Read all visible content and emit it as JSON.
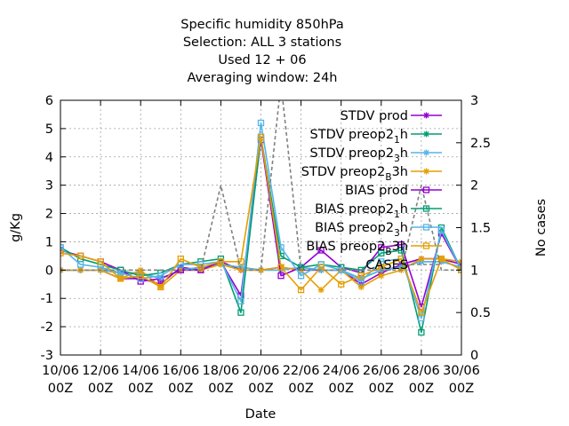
{
  "chart_data": {
    "type": "line",
    "title_lines": [
      "Specific humidity 850hPa",
      "Selection: ALL      3 stations",
      "Used  12 + 06",
      "Averaging window: 24h"
    ],
    "xlabel": "Date",
    "ylabel": "g/Kg",
    "y2label": "No cases",
    "ylim": [
      -3,
      6
    ],
    "y2lim": [
      0,
      3
    ],
    "yticks": [
      "-3",
      "-2",
      "-1",
      "0",
      "1",
      "2",
      "3",
      "4",
      "5",
      "6"
    ],
    "y2ticks": [
      "0",
      "0.5",
      "1",
      "1.5",
      "2",
      "2.5",
      "3"
    ],
    "xlim": [
      0,
      20
    ],
    "xticks": [
      {
        "date": "10/06",
        "hour": "00Z"
      },
      {
        "date": "12/06",
        "hour": "00Z"
      },
      {
        "date": "14/06",
        "hour": "00Z"
      },
      {
        "date": "16/06",
        "hour": "00Z"
      },
      {
        "date": "18/06",
        "hour": "00Z"
      },
      {
        "date": "20/06",
        "hour": "00Z"
      },
      {
        "date": "22/06",
        "hour": "00Z"
      },
      {
        "date": "24/06",
        "hour": "00Z"
      },
      {
        "date": "26/06",
        "hour": "00Z"
      },
      {
        "date": "28/06",
        "hour": "00Z"
      },
      {
        "date": "30/06",
        "hour": "00Z"
      }
    ],
    "x": [
      0,
      1,
      2,
      3,
      4,
      5,
      6,
      7,
      8,
      9,
      10,
      11,
      12,
      13,
      14,
      15,
      16,
      17,
      18,
      19,
      20,
      21
    ],
    "grid": true,
    "legend_position": "top-right",
    "series": [
      {
        "name": "STDV prod",
        "sub": "",
        "tail": "",
        "color": "#9400d3",
        "marker": "star",
        "dash": "",
        "values": [
          0,
          0,
          0,
          -0.3,
          -0.3,
          -0.5,
          0.1,
          0,
          0.3,
          0,
          0,
          0.1,
          0,
          0,
          0,
          -0.5,
          -0.1,
          0.2,
          0.4,
          0.4,
          0.2,
          0
        ]
      },
      {
        "name": "STDV preop2",
        "sub": "1",
        "tail": "h",
        "color": "#009e73",
        "marker": "star",
        "dash": "",
        "values": [
          0,
          0,
          0,
          -0.1,
          -0.1,
          -0.3,
          0,
          0.1,
          0.2,
          0.1,
          0,
          0,
          0.1,
          0,
          0,
          -0.3,
          0,
          0.1,
          0.3,
          0.3,
          0.1,
          0
        ]
      },
      {
        "name": "STDV preop2",
        "sub": "3",
        "tail": "h",
        "color": "#56b4e9",
        "marker": "star",
        "dash": "",
        "values": [
          0,
          0,
          0,
          -0.1,
          -0.1,
          -0.3,
          0,
          0.1,
          0.2,
          0.1,
          0,
          0,
          0.1,
          0,
          0,
          -0.3,
          0,
          0.1,
          0.3,
          0.3,
          0.1,
          0
        ]
      },
      {
        "name": "STDV preop2",
        "sub": "B",
        "tail": "3h",
        "color": "#e69f00",
        "marker": "star",
        "dash": "",
        "values": [
          0,
          0,
          0,
          -0.3,
          0,
          -0.6,
          0,
          0,
          0.2,
          0,
          0,
          0.1,
          0,
          -0.7,
          0,
          -0.6,
          -0.2,
          0,
          0.4,
          0.4,
          0.3,
          0
        ]
      },
      {
        "name": "BIAS prod",
        "sub": "",
        "tail": "",
        "color": "#9400d3",
        "marker": "square",
        "dash": "",
        "values": [
          0.7,
          0.5,
          0.3,
          0,
          -0.4,
          -0.3,
          0,
          0,
          0.3,
          -0.9,
          4.6,
          -0.2,
          0.1,
          0.7,
          0.1,
          -0.1,
          0.8,
          0.9,
          -1.3,
          1.3,
          0,
          0
        ]
      },
      {
        "name": "BIAS preop2",
        "sub": "1",
        "tail": "h",
        "color": "#009e73",
        "marker": "square",
        "dash": "",
        "values": [
          0.8,
          0.4,
          0.2,
          0,
          -0.2,
          -0.1,
          0.2,
          0.3,
          0.4,
          -1.5,
          4.7,
          0.5,
          0.1,
          0.2,
          0.1,
          0,
          0.6,
          0.7,
          -2.2,
          1.5,
          0,
          0
        ]
      },
      {
        "name": "BIAS preop2",
        "sub": "3",
        "tail": "h",
        "color": "#56b4e9",
        "marker": "square",
        "dash": "",
        "values": [
          0.8,
          0.2,
          0.1,
          -0.1,
          -0.3,
          -0.2,
          0.2,
          0.2,
          0.3,
          -1.1,
          5.2,
          0.8,
          -0.2,
          0.2,
          0,
          -0.4,
          0.3,
          0.4,
          -1.7,
          1.4,
          0,
          0
        ]
      },
      {
        "name": "BIAS preop2",
        "sub": "B",
        "tail": "3h",
        "color": "#e69f00",
        "marker": "square",
        "dash": "",
        "values": [
          0.6,
          0.5,
          0.3,
          -0.3,
          -0.2,
          -0.6,
          0.4,
          0.1,
          0.3,
          0.3,
          4.7,
          0.1,
          -0.7,
          0.1,
          -0.5,
          -0.2,
          0.1,
          0.4,
          -1.5,
          0.4,
          0,
          0
        ]
      },
      {
        "name": "CASES",
        "sub": "",
        "tail": "",
        "color": "#808080",
        "marker": "none",
        "dash": "4,3",
        "axis": "y2",
        "values": [
          1,
          1,
          1,
          1,
          1,
          1,
          1,
          1,
          2,
          1,
          1,
          3.2,
          1,
          1,
          1,
          1,
          1,
          1,
          2,
          1,
          1,
          1
        ]
      }
    ]
  }
}
